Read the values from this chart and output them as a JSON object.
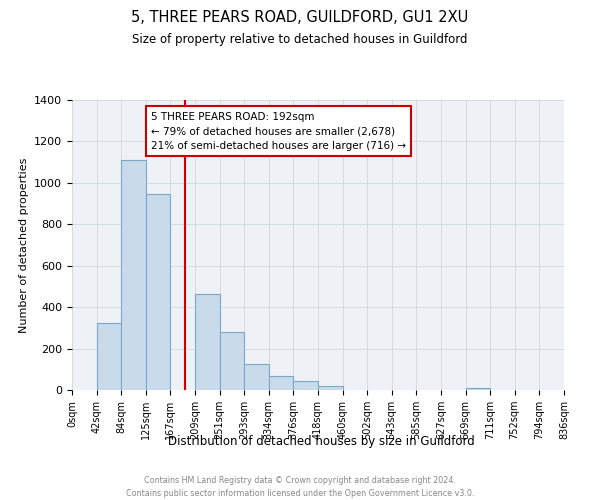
{
  "title": "5, THREE PEARS ROAD, GUILDFORD, GU1 2XU",
  "subtitle": "Size of property relative to detached houses in Guildford",
  "xlabel": "Distribution of detached houses by size in Guildford",
  "ylabel": "Number of detached properties",
  "bar_values": [
    0,
    325,
    1110,
    945,
    0,
    465,
    280,
    125,
    68,
    43,
    20,
    0,
    0,
    0,
    0,
    0,
    8,
    0,
    0,
    0
  ],
  "bin_edges": [
    0,
    42,
    84,
    125,
    167,
    209,
    251,
    293,
    334,
    376,
    418,
    460,
    502,
    543,
    585,
    627,
    669,
    711,
    752,
    794,
    836
  ],
  "tick_labels": [
    "0sqm",
    "42sqm",
    "84sqm",
    "125sqm",
    "167sqm",
    "209sqm",
    "251sqm",
    "293sqm",
    "334sqm",
    "376sqm",
    "418sqm",
    "460sqm",
    "502sqm",
    "543sqm",
    "585sqm",
    "627sqm",
    "669sqm",
    "711sqm",
    "752sqm",
    "794sqm",
    "836sqm"
  ],
  "bar_color": "#c9daea",
  "bar_edge_color": "#7aa8c9",
  "grid_color": "#d0d8e0",
  "vline_x": 192,
  "vline_color": "#cc0000",
  "annotation_title": "5 THREE PEARS ROAD: 192sqm",
  "annotation_line1": "← 79% of detached houses are smaller (2,678)",
  "annotation_line2": "21% of semi-detached houses are larger (716) →",
  "annotation_box_color": "#ffffff",
  "annotation_box_edge": "#cc0000",
  "ylim": [
    0,
    1400
  ],
  "yticks": [
    0,
    200,
    400,
    600,
    800,
    1000,
    1200,
    1400
  ],
  "footer_line1": "Contains HM Land Registry data © Crown copyright and database right 2024.",
  "footer_line2": "Contains public sector information licensed under the Open Government Licence v3.0.",
  "background_color": "#eef2f7"
}
